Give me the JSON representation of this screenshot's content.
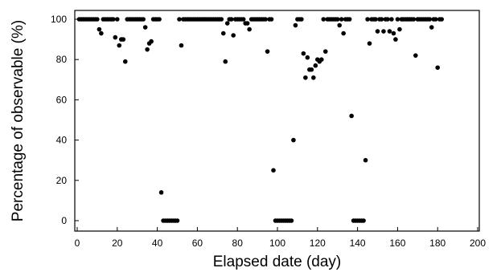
{
  "chart_data": {
    "type": "scatter",
    "title": "",
    "xlabel": "Elapsed date (day)",
    "ylabel": "Percentage of observable (%)",
    "xlim": [
      0,
      200
    ],
    "ylim": [
      0,
      100
    ],
    "xticks": [
      0,
      20,
      40,
      60,
      80,
      100,
      120,
      140,
      160,
      180,
      200
    ],
    "yticks": [
      0,
      20,
      40,
      60,
      80,
      100
    ],
    "grid": false,
    "legend": "none",
    "marker_color": "#000000",
    "points": [
      [
        1,
        100
      ],
      [
        2,
        100
      ],
      [
        3,
        100
      ],
      [
        4,
        100
      ],
      [
        5,
        100
      ],
      [
        6,
        100
      ],
      [
        7,
        100
      ],
      [
        8,
        100
      ],
      [
        9,
        100
      ],
      [
        10,
        100
      ],
      [
        11,
        95
      ],
      [
        12,
        93
      ],
      [
        13,
        100
      ],
      [
        14,
        100
      ],
      [
        15,
        100
      ],
      [
        16,
        100
      ],
      [
        17,
        100
      ],
      [
        18,
        100
      ],
      [
        19,
        91
      ],
      [
        20,
        100
      ],
      [
        21,
        87
      ],
      [
        22,
        90
      ],
      [
        23,
        90
      ],
      [
        24,
        79
      ],
      [
        25,
        100
      ],
      [
        26,
        100
      ],
      [
        27,
        100
      ],
      [
        28,
        100
      ],
      [
        29,
        100
      ],
      [
        30,
        100
      ],
      [
        31,
        100
      ],
      [
        32,
        100
      ],
      [
        33,
        100
      ],
      [
        34,
        96
      ],
      [
        35,
        85
      ],
      [
        36,
        88
      ],
      [
        37,
        89
      ],
      [
        38,
        100
      ],
      [
        39,
        100
      ],
      [
        40,
        100
      ],
      [
        41,
        100
      ],
      [
        42,
        14
      ],
      [
        43,
        0
      ],
      [
        44,
        0
      ],
      [
        45,
        0
      ],
      [
        46,
        0
      ],
      [
        47,
        0
      ],
      [
        48,
        0
      ],
      [
        49,
        0
      ],
      [
        50,
        0
      ],
      [
        51,
        100
      ],
      [
        52,
        87
      ],
      [
        53,
        100
      ],
      [
        54,
        100
      ],
      [
        55,
        100
      ],
      [
        56,
        100
      ],
      [
        57,
        100
      ],
      [
        58,
        100
      ],
      [
        59,
        100
      ],
      [
        60,
        100
      ],
      [
        61,
        100
      ],
      [
        62,
        100
      ],
      [
        63,
        100
      ],
      [
        64,
        100
      ],
      [
        65,
        100
      ],
      [
        66,
        100
      ],
      [
        67,
        100
      ],
      [
        68,
        100
      ],
      [
        69,
        100
      ],
      [
        70,
        100
      ],
      [
        71,
        100
      ],
      [
        72,
        100
      ],
      [
        73,
        93
      ],
      [
        74,
        79
      ],
      [
        75,
        98
      ],
      [
        76,
        100
      ],
      [
        77,
        100
      ],
      [
        78,
        92
      ],
      [
        79,
        100
      ],
      [
        80,
        100
      ],
      [
        81,
        100
      ],
      [
        82,
        100
      ],
      [
        83,
        100
      ],
      [
        84,
        98
      ],
      [
        85,
        98
      ],
      [
        86,
        95
      ],
      [
        87,
        100
      ],
      [
        88,
        100
      ],
      [
        89,
        100
      ],
      [
        90,
        100
      ],
      [
        91,
        100
      ],
      [
        92,
        100
      ],
      [
        93,
        100
      ],
      [
        94,
        100
      ],
      [
        95,
        84
      ],
      [
        96,
        100
      ],
      [
        97,
        100
      ],
      [
        98,
        25
      ],
      [
        99,
        0
      ],
      [
        100,
        0
      ],
      [
        101,
        0
      ],
      [
        102,
        0
      ],
      [
        103,
        0
      ],
      [
        104,
        0
      ],
      [
        105,
        0
      ],
      [
        106,
        0
      ],
      [
        107,
        0
      ],
      [
        108,
        40
      ],
      [
        109,
        97
      ],
      [
        110,
        100
      ],
      [
        111,
        100
      ],
      [
        112,
        100
      ],
      [
        113,
        83
      ],
      [
        114,
        71
      ],
      [
        115,
        81
      ],
      [
        116,
        75
      ],
      [
        117,
        75
      ],
      [
        118,
        71
      ],
      [
        119,
        77
      ],
      [
        120,
        80
      ],
      [
        121,
        79
      ],
      [
        122,
        80
      ],
      [
        123,
        100
      ],
      [
        124,
        84
      ],
      [
        125,
        100
      ],
      [
        126,
        100
      ],
      [
        127,
        100
      ],
      [
        128,
        100
      ],
      [
        129,
        100
      ],
      [
        130,
        100
      ],
      [
        131,
        97
      ],
      [
        132,
        100
      ],
      [
        133,
        93
      ],
      [
        134,
        100
      ],
      [
        135,
        100
      ],
      [
        136,
        100
      ],
      [
        137,
        52
      ],
      [
        138,
        0
      ],
      [
        139,
        0
      ],
      [
        140,
        0
      ],
      [
        141,
        0
      ],
      [
        142,
        0
      ],
      [
        143,
        0
      ],
      [
        144,
        30
      ],
      [
        145,
        100
      ],
      [
        146,
        88
      ],
      [
        147,
        100
      ],
      [
        148,
        100
      ],
      [
        149,
        100
      ],
      [
        150,
        94
      ],
      [
        151,
        100
      ],
      [
        152,
        100
      ],
      [
        153,
        94
      ],
      [
        154,
        100
      ],
      [
        155,
        100
      ],
      [
        156,
        94
      ],
      [
        157,
        100
      ],
      [
        158,
        93
      ],
      [
        159,
        90
      ],
      [
        160,
        100
      ],
      [
        161,
        95
      ],
      [
        162,
        100
      ],
      [
        163,
        100
      ],
      [
        164,
        100
      ],
      [
        165,
        100
      ],
      [
        166,
        100
      ],
      [
        167,
        100
      ],
      [
        168,
        100
      ],
      [
        169,
        82
      ],
      [
        170,
        100
      ],
      [
        171,
        100
      ],
      [
        172,
        100
      ],
      [
        173,
        100
      ],
      [
        174,
        100
      ],
      [
        175,
        100
      ],
      [
        176,
        100
      ],
      [
        177,
        96
      ],
      [
        178,
        100
      ],
      [
        179,
        100
      ],
      [
        180,
        76
      ],
      [
        181,
        100
      ],
      [
        182,
        100
      ]
    ]
  }
}
